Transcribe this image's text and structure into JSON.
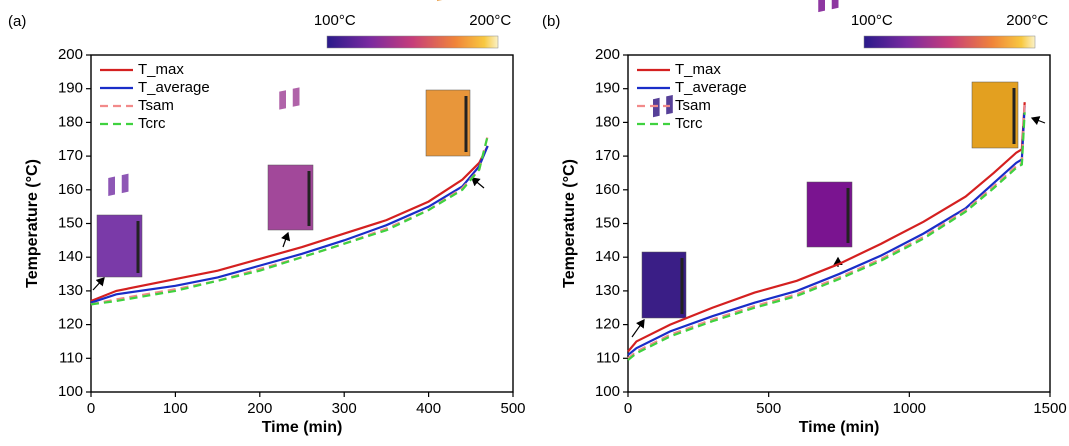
{
  "chart_data": [
    {
      "type": "line",
      "panel_label": "(a)",
      "x_label": "Time (min)",
      "y_label": "Temperature (°C)",
      "xlim": [
        0,
        500
      ],
      "xticks": [
        0,
        100,
        200,
        300,
        400,
        500
      ],
      "ylim": [
        100,
        200
      ],
      "yticks": [
        100,
        110,
        120,
        130,
        140,
        150,
        160,
        170,
        180,
        190,
        200
      ],
      "colorbar": {
        "lim": [
          95,
          205
        ],
        "ticks": [
          {
            "value": 100,
            "label": "100°C"
          },
          {
            "value": 200,
            "label": "200°C"
          }
        ]
      },
      "x": [
        0,
        30,
        100,
        150,
        200,
        250,
        300,
        350,
        400,
        440,
        460,
        470
      ],
      "series": [
        {
          "name": "T_max",
          "color": "#d42020",
          "dashed": false,
          "values": [
            127,
            130,
            133.5,
            136,
            139.5,
            143,
            147,
            151,
            156.5,
            163,
            168,
            173
          ]
        },
        {
          "name": "T_average",
          "color": "#1a2dc8",
          "dashed": false,
          "values": [
            126.5,
            129,
            131.5,
            134,
            137.5,
            141,
            145,
            149.5,
            155,
            161,
            167,
            173
          ]
        },
        {
          "name": "Tsam",
          "color": "#f28a8a",
          "dashed": true,
          "values": [
            126,
            127.5,
            130.5,
            133,
            136.5,
            140,
            144,
            148.5,
            154,
            160.5,
            166,
            176
          ]
        },
        {
          "name": "Tcrc",
          "color": "#3fd23f",
          "dashed": true,
          "values": [
            126,
            127,
            130,
            133,
            136,
            140,
            144,
            148,
            154,
            160,
            166,
            176
          ]
        }
      ]
    },
    {
      "type": "line",
      "panel_label": "(b)",
      "x_label": "Time (min)",
      "y_label": "Temperature (°C)",
      "xlim": [
        0,
        1500
      ],
      "xticks": [
        0,
        500,
        1000,
        1500
      ],
      "ylim": [
        100,
        200
      ],
      "yticks": [
        100,
        110,
        120,
        130,
        140,
        150,
        160,
        170,
        180,
        190,
        200
      ],
      "colorbar": {
        "lim": [
          95,
          205
        ],
        "ticks": [
          {
            "value": 100,
            "label": "100°C"
          },
          {
            "value": 200,
            "label": "200°C"
          }
        ]
      },
      "x": [
        0,
        30,
        150,
        300,
        450,
        600,
        750,
        900,
        1050,
        1200,
        1300,
        1380,
        1400,
        1410
      ],
      "series": [
        {
          "name": "T_max",
          "color": "#d42020",
          "dashed": false,
          "values": [
            112,
            115,
            120,
            125,
            129.5,
            133,
            138,
            144,
            150.5,
            158,
            165,
            171,
            172,
            186
          ]
        },
        {
          "name": "T_average",
          "color": "#1a2dc8",
          "dashed": false,
          "values": [
            111,
            113,
            118,
            122.5,
            126.5,
            130,
            135,
            140.5,
            147,
            154.5,
            162,
            168,
            169,
            185
          ]
        },
        {
          "name": "Tsam",
          "color": "#f28a8a",
          "dashed": true,
          "values": [
            110,
            112,
            117,
            121.5,
            125.5,
            129,
            134,
            139.5,
            146,
            154,
            161,
            167,
            168,
            186
          ]
        },
        {
          "name": "Tcrc",
          "color": "#3fd23f",
          "dashed": true,
          "values": [
            109.5,
            111.5,
            116.5,
            121,
            125,
            128.5,
            133.5,
            139,
            145.5,
            153.5,
            160.5,
            166.5,
            167.5,
            183
          ]
        }
      ]
    }
  ]
}
